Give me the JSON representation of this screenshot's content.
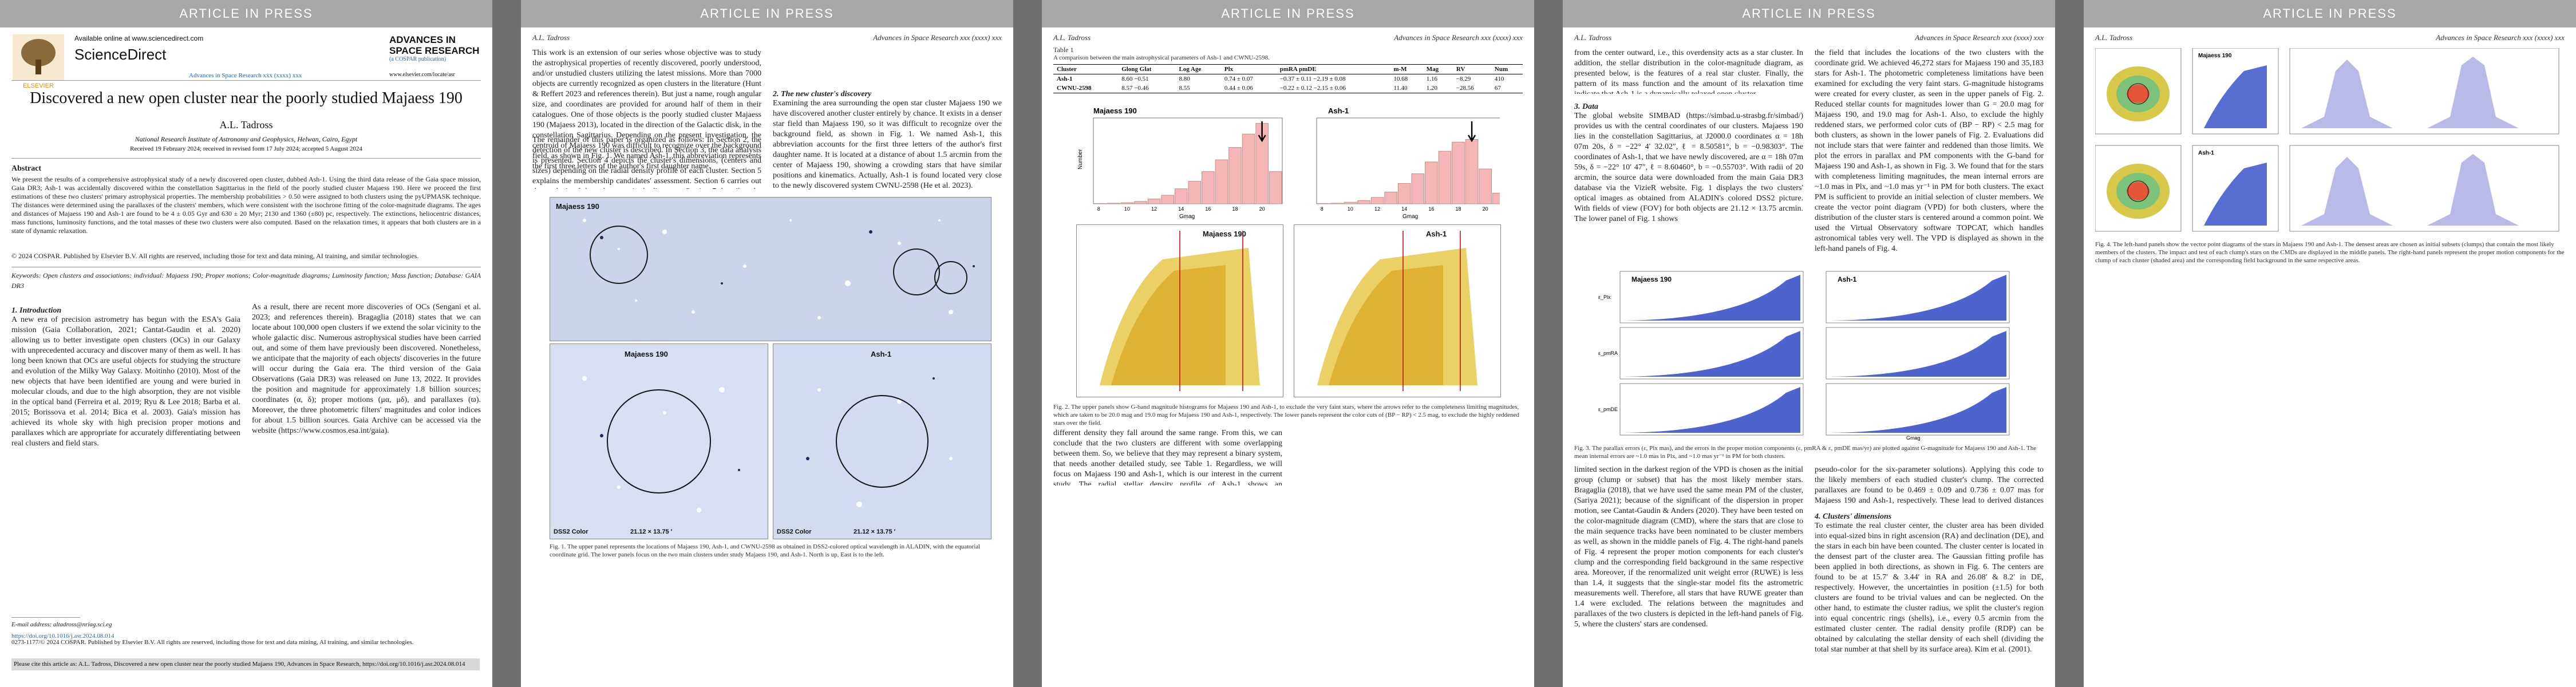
{
  "common": {
    "banner": "ARTICLE IN PRESS",
    "author_short": "A.L. Tadross",
    "journal_short": "Advances in Space Research xxx (xxxx) xxx"
  },
  "page1": {
    "available_online": "Available online at www.sciencedirect.com",
    "sciencedirect": "ScienceDirect",
    "elsevier": "ELSEVIER",
    "journal_logo": "ADVANCES IN SPACE RESEARCH",
    "journal_logo_sub": "(a COSPAR publication)",
    "journal_url": "www.elsevier.com/locate/asr",
    "journal_line": "Advances in Space Research xxx (xxxx) xxx",
    "title": "Discovered a new open cluster near the poorly studied Majaess 190",
    "author": "A.L. Tadross",
    "affiliation": "National Research Institute of Astronomy and Geophysics, Helwan, Cairo, Egypt",
    "received": "Received 19 February 2024; received in revised form 17 July 2024; accepted 5 August 2024",
    "abstract_heading": "Abstract",
    "abstract": "We present the results of a comprehensive astrophysical study of a newly discovered open cluster, dubbed Ash-1. Using the third data release of the Gaia space mission, Gaia DR3; Ash-1 was accidentally discovered within the constellation Sagittarius in the field of the poorly studied cluster Majaess 190. Here we proceed the first estimations of these two clusters' primary astrophysical properties. The membership probabilities > 0.50 were assigned to both clusters using the pyUPMASK technique. The distances were determined using the parallaxes of the clusters' members, which were consistent with the isochrone fitting of the color-magnitude diagrams. The ages and distances of Majaess 190 and Ash-1 are found to be 4 ± 0.05 Gyr and 630 ± 20 Myr; 2130 and 1360 (±80) pc, respectively. The extinctions, heliocentric distances, mass functions, luminosity functions, and the total masses of these two clusters were also computed. Based on the relaxation times, it appears that both clusters are in a state of dynamic relaxation.",
    "copyright": "© 2024 COSPAR. Published by Elsevier B.V. All rights are reserved, including those for text and data mining, AI training, and similar technologies.",
    "keywords": "Keywords: Open clusters and associations: individual: Majaess 190; Proper motions; Color-magnitude diagrams; Luminosity function; Mass function; Database: GAIA DR3",
    "intro_heading": "1. Introduction",
    "intro_a": "A new era of precision astrometry has begun with the ESA's Gaia mission (Gaia Collaboration, 2021; Cantat-Gaudin et al. 2020) allowing us to better investigate open clusters (OCs) in our Galaxy with unprecedented accuracy and discover many of them as well. It has long been known that OCs are useful objects for studying the structure and evolution of the Milky Way Galaxy. Moitinho (2010). Most of the new objects that have been identified are young and were buried in molecular clouds, and due to the high absorption, they are not visible in the optical band (Ferreira et al. 2019; Ryu & Lee 2018; Barba et al. 2015; Borissova et al. 2014; Bica et al. 2003). Gaia's mission has achieved its whole sky with high precision proper motions and parallaxes which are appropriate for accurately differentiating between real clusters and field stars.",
    "intro_b": "As a result, there are recent more discoveries of OCs (Sengani et al. 2023; and references therein). Bragaglia (2018) states that we can locate about 100,000 open clusters if we extend the solar vicinity to the whole galactic disc. Numerous astrophysical studies have been carried out, and some of them have previously been discovered. Nonetheless, we anticipate that the majority of each objects' discoveries in the future will occur during the Gaia era. The third version of the Gaia Observations (Gaia DR3) was released on June 13, 2022. It provides the position and magnitude for approximately 1.8 billion sources; coordinates (α, δ); proper motions (μα, μδ), and parallaxes (ϖ). Moreover, the three photometric filters' magnitudes and color indices for about 1.5 billion sources. Gaia Archive can be accessed via the website (https://www.cosmos.esa.int/gaia).",
    "email": "E-mail address: altadross@nriag.sci.eg",
    "doi": "https://doi.org/10.1016/j.asr.2024.08.014",
    "issn": "0273-1177/© 2024 COSPAR. Published by Elsevier B.V. All rights are reserved, including those for text and data mining, AI training, and similar technologies.",
    "cite": "Please cite this article as: A.L. Tadross, Discovered a new open cluster near the poorly studied Majaess 190, Advances in Space Research, https://doi.org/10.1016/j.asr.2024.08.014"
  },
  "page2": {
    "para1": "This work is an extension of our series whose objective was to study the astrophysical properties of recently discovered, poorly understood, and/or unstudied clusters utilizing the latest missions. More than 7000 objects are currently recognized as open clusters in the literature (Hunt & Reffert 2023 and references therein). But just a name, rough angular size, and coordinates are provided for around half of them in their catalogues. One of those objects is the poorly studied cluster Majaess 190 (Majaess 2013), located in the direction of the Galactic disk, in the constellation Sagittarius. Depending on the present investigation, the centroid of Majaess 190 was difficult to recognize over the background field, as shown in Fig. 1. We named Ash-1, this abbreviation represents the first three letters of the author's first daughter name.",
    "para2": "The remainder of this paper is organized as follows: In Section 2, the detection of the new cluster is described. In Section 3, the data analysis is presented. Section 4 depicts the cluster's dimensions, (centers and sizes) depending on the radial density profile of each cluster. Section 5 explains the membership candidates' assessment. Section 6 carries out the analysis of the color-magnitude diagrams. Section 7 describes the mass, luminosity functions, and the dynamic state. Finally, Section 8 highlights the main conclusions, providing a list of our estimated characteristics for the studied clusters.",
    "sec2_heading": "2. The new cluster's discovery",
    "sec2_text": "Examining the area surrounding the open star cluster Majaess 190 we have discovered another cluster entirely by chance. It exists in a denser star field than Majaess 190, so it was difficult to recognize over the background field, as shown in Fig. 1. We named Ash-1, this abbreviation accounts for the first three letters of the author's first daughter name. It is located at a distance of about 1.5 arcmin from the center of Majaess 190, showing a crowding stars that have similar positions and kinematics. Actually, Ash-1 is found located very close to the newly discovered system CWNU-2598 (He et al. 2023).",
    "fig1_labels": {
      "tl": "Majaess 190",
      "bl": "Majaess 190",
      "br": "Ash-1",
      "dss_l": "DSS2 Color",
      "dss_r": "DSS2 Color",
      "dim_l": "21.12 × 13.75 ′",
      "dim_r": "21.12 × 13.75 ′"
    },
    "fig1_caption": "Fig. 1. The upper panel represents the locations of Majaess 190, Ash-1, and CWNU-2598 as obtained in DSS2-colored optical wavelength in ALADIN, with the equatorial coordinate grid. The lower panels focus on the two main clusters under study Majaess 190, and Ash-1. North is up, East is to the left."
  },
  "page3": {
    "table_title": "Table 1",
    "table_caption": "A comparison between the main astrophysical parameters of Ash-1 and CWNU-2598.",
    "table_headers": [
      "Cluster",
      "Glong Glat",
      "Log Age",
      "Plx",
      "pmRA pmDE",
      "m-M",
      "Mag",
      "RV",
      "Num"
    ],
    "table_rows": [
      [
        "Ash-1",
        "8.60 −0.51",
        "8.80",
        "0.74 ± 0.07",
        "−0.37 ± 0.11 −2.19 ± 0.08",
        "10.68",
        "1.16",
        "−8.29",
        "410"
      ],
      [
        "CWNU-2598",
        "8.57 −0.46",
        "8.55",
        "0.44 ± 0.06",
        "−0.22 ± 0.12 −2.15 ± 0.06",
        "11.40",
        "1.20",
        "−28.56",
        "67"
      ]
    ],
    "fig2_left_title": "Majaess 190",
    "fig2_right_title": "Ash-1",
    "fig2_xlabel": "Gmag",
    "fig2_ylabel": "Number",
    "fig2_xticks": [
      "10",
      "12",
      "14",
      "16",
      "18",
      "20"
    ],
    "fig2_caption": "Fig. 2. The upper panels show G-band magnitude histograms for Majaess 190 and Ash-1, to exclude the very faint stars, where the arrows refer to the completeness limiting magnitudes, which are taken to be 20.0 mag and 19.0 mag for Majaess 190 and Ash-1, respectively. The lower panels represent the color cuts of (BP − RP) < 2.5 mag, to exclude the highly reddened stars over the field.",
    "text_below": "different density they fall around the same range. From this, we can conclude that the two clusters are different with some overlapping between them. So, we believe that they may represent a binary system, that needs another detailed study, see Table 1. Regardless, we will focus on Majaess 190 and Ash-1, which is our interest in the current study. The radial stellar density profile of Ash-1 shows an approximately exponential decline in the surface density"
  },
  "page4": {
    "para1": "from the center outward, i.e., this overdensity acts as a star cluster. In addition, the stellar distribution in the color-magnitude diagram, as presented below, is the features of a real star cluster. Finally, the pattern of its mass function and the amount of its relaxation time indicate that Ash-1 is a dynamically relaxed open cluster.",
    "sec3_heading": "3. Data",
    "sec3_text": "The global website SIMBAD (https://simbad.u-strasbg.fr/simbad/) provides us with the central coordinates of our clusters. Majaess 190 lies in the constellation Sagittarius, at J2000.0 coordinates α = 18h 07m 20s, δ = −22° 4′ 32.02″, ℓ = 8.50581°, b = −0.98303°. The coordinates of Ash-1, that we have newly discovered, are α = 18h 07m 59s, δ = −22° 10′ 47″, ℓ = 8.60460°, b = −0.55703°. With radii of 20 arcmin, the source data were downloaded from the main Gaia DR3 database via the VizieR website. Fig. 1 displays the two clusters' optical images as obtained from ALADIN's colored DSS2 picture. With fields of view (FOV) for both objects are 21.12 × 13.75 arcmin. The lower panel of Fig. 1 shows",
    "para_right": "the field that includes the locations of the two clusters with the coordinate grid. We achieved 46,272 stars for Majaess 190 and 35,183 stars for Ash-1. The photometric completeness limitations have been examined for excluding the very faint stars. G-magnitude histograms were created for every cluster, as seen in the upper panels of Fig. 2. Reduced stellar counts for magnitudes lower than G = 20.0 mag for Majaess 190, and 19.0 mag for Ash-1. Also, to exclude the highly reddened stars, we performed color cuts of (BP − RP) < 2.5 mag for both clusters, as shown in the lower panels of Fig. 2. Evaluations did not include stars that were fainter and reddened than those limits. We plot the errors in parallax and PM components with the G-band for Majaess 190 and Ash-1, as shown in Fig. 3. We found that for the stars with completeness limiting magnitudes, the mean internal errors are ~1.0 mas in Plx, and ~1.0 mas yr⁻¹ in PM for both clusters. The exact PM is sufficient to provide an initial selection of cluster members. We create the vector point diagram (VPD) for both clusters, where the distribution of the cluster stars is centered around a common point. We used the Virtual Observatory software TOPCAT, which handles astronomical tables very well. The VPD is displayed as shown in the left-hand panels of Fig. 4.",
    "fig3_left_title": "Majaess 190",
    "fig3_right_title": "Ash-1",
    "fig3_ylabels": [
      "ε_Plx",
      "ε_pmRA",
      "ε_pmDE"
    ],
    "fig3_xlabel": "Gmag",
    "fig3_caption": "Fig. 3. The parallax errors (ε, Plx mas), and the errors in the proper motion components (ε, pmRA & ε, pmDE mas/yr) are plotted against G-magnitude for Majaess 190 and Ash-1. The mean internal errors are ~1.0 mas in Plx, and ~1.0 mas yr⁻¹ in PM for both clusters.",
    "para_bottom_left": "limited section in the darkest region of the VPD is chosen as the initial group (clump or subset) that has the most likely member stars. Bragaglia (2018), that we have used the same mean PM of the cluster, (Sariya 2021); because of the significant of the dispersion in proper motion, see Cantat-Gaudin & Anders (2020). They have been tested on the color-magnitude diagram (CMD), where the stars that are close to the main sequence tracks have been nominated to be cluster members as well, as shown in the middle panels of Fig. 4. The right-hand panels of Fig. 4 represent the proper motion components for each cluster's clump and the corresponding field background in the same respective area. Moreover, if the renormalized unit weight error (RUWE) is less than 1.4, it suggests that the single-star model fits the astrometric measurements well. Therefore, all stars that have RUWE greater than 1.4 were excluded. The relations between the magnitudes and parallaxes of the two clusters is depicted in the left-hand panels of Fig. 5, where the clusters' stars are condensed.",
    "para_bottom_right": "pseudo-color for the six-parameter solutions). Applying this code to the likely members of each studied cluster's clump. The corrected parallaxes are found to be 0.469 ± 0.09 and 0.736 ± 0.07 mas for Majaess 190 and Ash-1, respectively. These lead to derived distances of ~ 2130 and 1360 (±80) pc, respectively.",
    "sec4_heading": "4. Clusters' dimensions",
    "sec4_text": "To estimate the real cluster center, the cluster area has been divided into equal-sized bins in right ascension (RA) and declination (DE), and the stars in each bin have been counted. The cluster center is located in the densest part of the cluster area. The Gaussian fitting profile has been applied in both directions, as shown in Fig. 6. The centers are found to be at 15.7′ & 3.44′ in RA and 26.08′ & 8.2′ in DE, respectively. However, the uncertainties in position (±1.5) for both clusters are found to be trivial values and can be neglected. On the other hand, to estimate the cluster radius, we split the cluster's region into equal concentric rings (shells), i.e., every 0.5 arcmin from the estimated cluster center. The radial density profile (RDP) can be obtained by calculating the stellar density of each shell (dividing the total star number at that shell by its surface area). Kim et al. (2001)."
  },
  "page5": {
    "fig4_caption": "Fig. 4. The left-hand panels show the vector point diagrams of the stars in Majaess 190 and Ash-1. The densest areas are chosen as initial subsets (clumps) that contain the most likely members of the clusters. The impact and test of each clump's stars on the CMDs are displayed in the middle panels. The right-hand panels represent the proper motion components for the clump of each cluster (shaded area) and the corresponding field background in the same respective areas.",
    "fig4_label_a": "Majaess 190",
    "fig4_label_b": "Ash-1"
  },
  "chart_data": [
    {
      "type": "bar",
      "title": "Majaess 190",
      "xlabel": "Gmag",
      "ylabel": "Number",
      "categories": [
        "8",
        "9",
        "10",
        "11",
        "12",
        "13",
        "14",
        "15",
        "16",
        "17",
        "18",
        "19",
        "20",
        "21"
      ],
      "values": [
        5,
        10,
        20,
        45,
        90,
        160,
        280,
        420,
        600,
        820,
        1050,
        1300,
        1500,
        600
      ],
      "ylim": [
        0,
        1600
      ],
      "limit_arrow": 20.0
    },
    {
      "type": "bar",
      "title": "Ash-1",
      "xlabel": "Gmag",
      "ylabel": "Number",
      "categories": [
        "8",
        "9",
        "10",
        "11",
        "12",
        "13",
        "14",
        "15",
        "16",
        "17",
        "18",
        "19",
        "20",
        "21"
      ],
      "values": [
        5,
        10,
        30,
        60,
        120,
        220,
        380,
        560,
        780,
        980,
        1150,
        1200,
        650,
        200
      ],
      "ylim": [
        0,
        1600
      ],
      "limit_arrow": 19.0
    }
  ]
}
